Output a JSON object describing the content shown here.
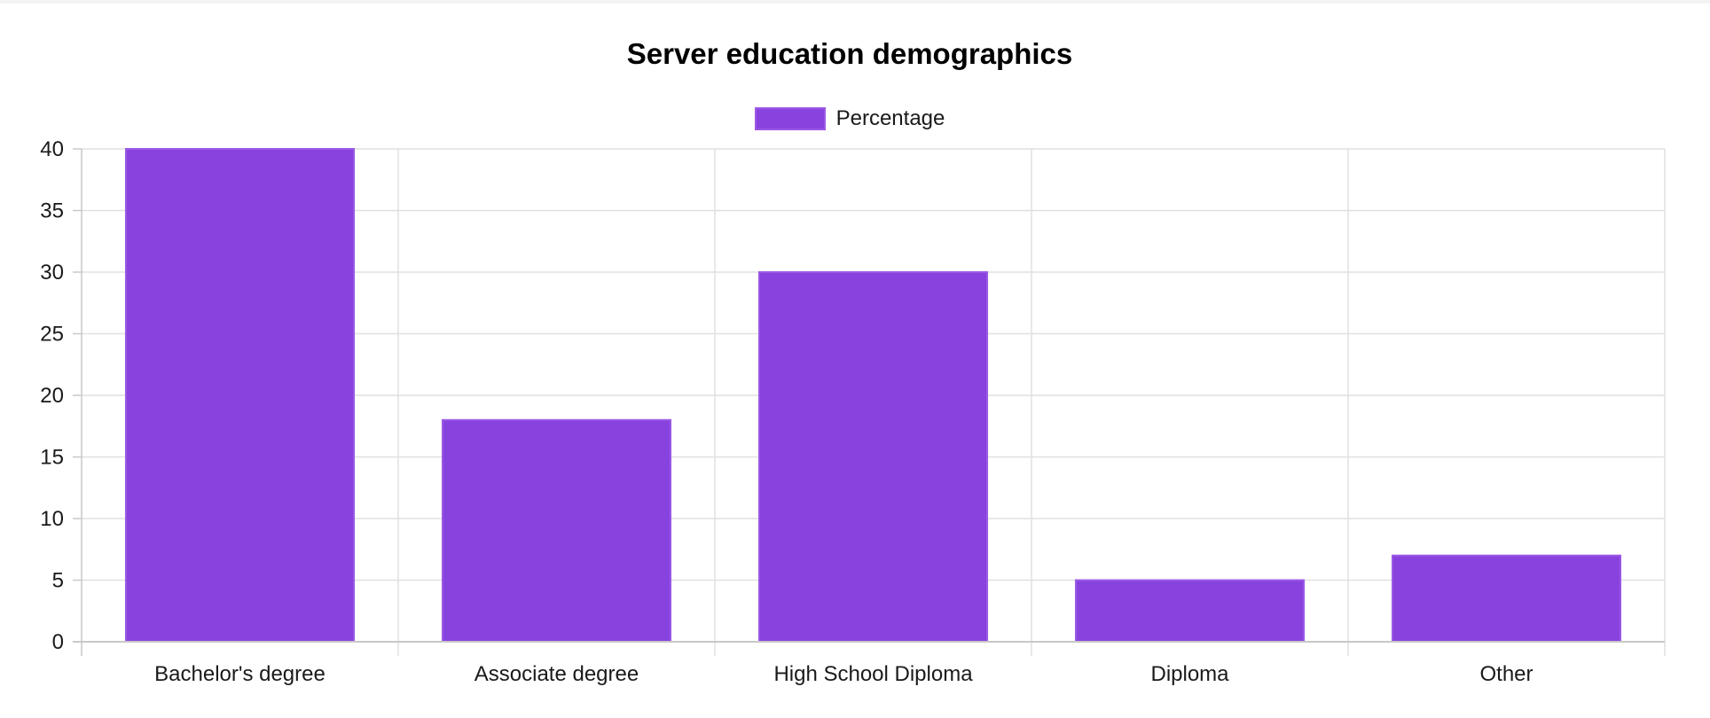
{
  "chart_data": {
    "type": "bar",
    "title": "Server education demographics",
    "categories": [
      "Bachelor's degree",
      "Associate degree",
      "High School Diploma",
      "Diploma",
      "Other"
    ],
    "series": [
      {
        "name": "Percentage",
        "values": [
          40,
          18,
          30,
          5,
          7
        ]
      }
    ],
    "xlabel": "",
    "ylabel": "",
    "ylim": [
      0,
      40
    ],
    "yticks": [
      0,
      5,
      10,
      15,
      20,
      25,
      30,
      35,
      40
    ],
    "grid": true,
    "legend_position": "top"
  },
  "colors": {
    "bar_fill": "#8842de",
    "bar_border": "#9b59e6",
    "grid": "#e0e0e0",
    "axis": "#c8c8c8"
  }
}
